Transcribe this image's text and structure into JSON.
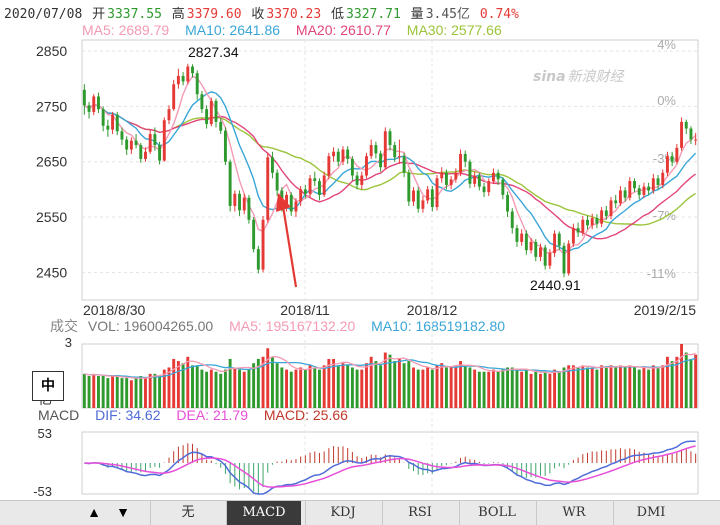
{
  "header": {
    "date": "2020/07/08",
    "open_label": "开",
    "open": "3337.55",
    "high_label": "高",
    "high": "3379.60",
    "close_label": "收",
    "close": "3370.23",
    "low_label": "低",
    "low": "3327.71",
    "vol_label": "量",
    "vol": "3.45亿",
    "change": "0.74%"
  },
  "ma_legend": {
    "ma5": "MA5: 2689.79",
    "ma10": "MA10: 2641.86",
    "ma20": "MA20: 2610.77",
    "ma30": "MA30: 2577.66"
  },
  "vol_legend": {
    "label": "成交",
    "vol": "VOL: 196004265.00",
    "ma5": "MA5: 195167132.20",
    "ma10": "MA10: 168519182.80"
  },
  "macd_legend": {
    "label": "MACD",
    "dif": "DIF: 34.62",
    "dea": "DEA: 21.79",
    "macd": "MACD: 25.66"
  },
  "brand": "新浪财经",
  "brand_prefix": "sina",
  "zh_button": "中",
  "tabs": [
    "无",
    "MACD",
    "KDJ",
    "RSI",
    "BOLL",
    "WR",
    "DMI"
  ],
  "active_tab": "MACD",
  "nav": {
    "up": "▲",
    "down": "▼"
  },
  "colors": {
    "up": "#e53935",
    "down": "#2e9a2e",
    "ma5": "#f39bb3",
    "ma10": "#3aa6d8",
    "ma20": "#e2467a",
    "ma30": "#9bc43a",
    "dif": "#4f6bd8",
    "dea": "#e84fd8",
    "annotation": "#e53935"
  },
  "chart_data": {
    "type": "candlestick",
    "price_axis": {
      "ticks": [
        2850,
        2750,
        2650,
        2550,
        2450
      ],
      "ylim": [
        2400,
        2870
      ]
    },
    "pct_axis": {
      "ticks": [
        "4%",
        "0%",
        "-3%",
        "-7%",
        "-11%"
      ]
    },
    "x_ticks": [
      "2018/8/30",
      "2018/11",
      "2018/12",
      "2019/2/15"
    ],
    "annotations": {
      "high": "2827.34",
      "low": "2440.91"
    },
    "volume_axis": {
      "top": "3",
      "unit": "亿"
    },
    "macd_axis": {
      "top": "53",
      "bottom": "-53"
    },
    "candles": [
      {
        "o": 2780,
        "c": 2752,
        "h": 2790,
        "l": 2735,
        "v": 1.6
      },
      {
        "o": 2752,
        "c": 2740,
        "h": 2758,
        "l": 2728,
        "v": 1.5
      },
      {
        "o": 2740,
        "c": 2768,
        "h": 2772,
        "l": 2734,
        "v": 1.6
      },
      {
        "o": 2768,
        "c": 2745,
        "h": 2775,
        "l": 2738,
        "v": 1.5
      },
      {
        "o": 2745,
        "c": 2715,
        "h": 2750,
        "l": 2705,
        "v": 1.5
      },
      {
        "o": 2715,
        "c": 2708,
        "h": 2726,
        "l": 2695,
        "v": 1.4
      },
      {
        "o": 2708,
        "c": 2735,
        "h": 2740,
        "l": 2700,
        "v": 1.5
      },
      {
        "o": 2735,
        "c": 2705,
        "h": 2740,
        "l": 2698,
        "v": 1.5
      },
      {
        "o": 2705,
        "c": 2690,
        "h": 2712,
        "l": 2680,
        "v": 1.4
      },
      {
        "o": 2690,
        "c": 2672,
        "h": 2696,
        "l": 2662,
        "v": 1.4
      },
      {
        "o": 2672,
        "c": 2688,
        "h": 2694,
        "l": 2664,
        "v": 1.3
      },
      {
        "o": 2688,
        "c": 2680,
        "h": 2700,
        "l": 2674,
        "v": 1.4
      },
      {
        "o": 2680,
        "c": 2655,
        "h": 2684,
        "l": 2648,
        "v": 1.5
      },
      {
        "o": 2655,
        "c": 2668,
        "h": 2676,
        "l": 2650,
        "v": 1.4
      },
      {
        "o": 2668,
        "c": 2700,
        "h": 2708,
        "l": 2664,
        "v": 1.6
      },
      {
        "o": 2700,
        "c": 2680,
        "h": 2712,
        "l": 2670,
        "v": 1.6
      },
      {
        "o": 2680,
        "c": 2652,
        "h": 2686,
        "l": 2645,
        "v": 1.5
      },
      {
        "o": 2652,
        "c": 2725,
        "h": 2730,
        "l": 2650,
        "v": 1.8
      },
      {
        "o": 2725,
        "c": 2745,
        "h": 2752,
        "l": 2718,
        "v": 1.9
      },
      {
        "o": 2745,
        "c": 2790,
        "h": 2798,
        "l": 2742,
        "v": 2.3
      },
      {
        "o": 2790,
        "c": 2805,
        "h": 2818,
        "l": 2782,
        "v": 2.2
      },
      {
        "o": 2805,
        "c": 2795,
        "h": 2812,
        "l": 2788,
        "v": 2.1
      },
      {
        "o": 2795,
        "c": 2822,
        "h": 2827,
        "l": 2790,
        "v": 2.4
      },
      {
        "o": 2822,
        "c": 2810,
        "h": 2826,
        "l": 2802,
        "v": 2.0
      },
      {
        "o": 2810,
        "c": 2772,
        "h": 2815,
        "l": 2762,
        "v": 2.0
      },
      {
        "o": 2772,
        "c": 2745,
        "h": 2778,
        "l": 2738,
        "v": 1.8
      },
      {
        "o": 2745,
        "c": 2718,
        "h": 2752,
        "l": 2710,
        "v": 1.7
      },
      {
        "o": 2718,
        "c": 2760,
        "h": 2766,
        "l": 2714,
        "v": 1.8
      },
      {
        "o": 2760,
        "c": 2722,
        "h": 2764,
        "l": 2712,
        "v": 1.7
      },
      {
        "o": 2722,
        "c": 2706,
        "h": 2730,
        "l": 2700,
        "v": 1.6
      },
      {
        "o": 2706,
        "c": 2650,
        "h": 2712,
        "l": 2644,
        "v": 1.8
      },
      {
        "o": 2650,
        "c": 2570,
        "h": 2654,
        "l": 2560,
        "v": 2.3
      },
      {
        "o": 2570,
        "c": 2592,
        "h": 2598,
        "l": 2560,
        "v": 1.9
      },
      {
        "o": 2592,
        "c": 2562,
        "h": 2598,
        "l": 2552,
        "v": 1.8
      },
      {
        "o": 2562,
        "c": 2585,
        "h": 2592,
        "l": 2555,
        "v": 1.7
      },
      {
        "o": 2585,
        "c": 2545,
        "h": 2590,
        "l": 2538,
        "v": 1.8
      },
      {
        "o": 2545,
        "c": 2492,
        "h": 2550,
        "l": 2486,
        "v": 2.1
      },
      {
        "o": 2492,
        "c": 2455,
        "h": 2498,
        "l": 2448,
        "v": 2.3
      },
      {
        "o": 2455,
        "c": 2545,
        "h": 2552,
        "l": 2450,
        "v": 2.4
      },
      {
        "o": 2545,
        "c": 2658,
        "h": 2666,
        "l": 2540,
        "v": 2.8
      },
      {
        "o": 2658,
        "c": 2630,
        "h": 2668,
        "l": 2620,
        "v": 2.4
      },
      {
        "o": 2630,
        "c": 2598,
        "h": 2636,
        "l": 2588,
        "v": 2.1
      },
      {
        "o": 2598,
        "c": 2568,
        "h": 2604,
        "l": 2560,
        "v": 1.9
      },
      {
        "o": 2568,
        "c": 2590,
        "h": 2596,
        "l": 2560,
        "v": 1.8
      },
      {
        "o": 2590,
        "c": 2560,
        "h": 2595,
        "l": 2552,
        "v": 1.7
      },
      {
        "o": 2560,
        "c": 2578,
        "h": 2584,
        "l": 2550,
        "v": 1.8
      },
      {
        "o": 2578,
        "c": 2600,
        "h": 2606,
        "l": 2570,
        "v": 1.9
      },
      {
        "o": 2600,
        "c": 2592,
        "h": 2608,
        "l": 2584,
        "v": 1.8
      },
      {
        "o": 2592,
        "c": 2620,
        "h": 2626,
        "l": 2586,
        "v": 2.0
      },
      {
        "o": 2620,
        "c": 2615,
        "h": 2632,
        "l": 2606,
        "v": 1.9
      },
      {
        "o": 2615,
        "c": 2590,
        "h": 2620,
        "l": 2580,
        "v": 1.8
      },
      {
        "o": 2590,
        "c": 2625,
        "h": 2632,
        "l": 2586,
        "v": 2.0
      },
      {
        "o": 2625,
        "c": 2660,
        "h": 2666,
        "l": 2618,
        "v": 2.3
      },
      {
        "o": 2660,
        "c": 2668,
        "h": 2676,
        "l": 2650,
        "v": 2.3
      },
      {
        "o": 2668,
        "c": 2650,
        "h": 2674,
        "l": 2642,
        "v": 2.0
      },
      {
        "o": 2650,
        "c": 2672,
        "h": 2678,
        "l": 2644,
        "v": 2.1
      },
      {
        "o": 2672,
        "c": 2655,
        "h": 2678,
        "l": 2646,
        "v": 2.0
      },
      {
        "o": 2655,
        "c": 2625,
        "h": 2660,
        "l": 2616,
        "v": 1.9
      },
      {
        "o": 2625,
        "c": 2608,
        "h": 2632,
        "l": 2600,
        "v": 1.8
      },
      {
        "o": 2608,
        "c": 2625,
        "h": 2632,
        "l": 2600,
        "v": 1.8
      },
      {
        "o": 2625,
        "c": 2660,
        "h": 2666,
        "l": 2620,
        "v": 2.1
      },
      {
        "o": 2660,
        "c": 2680,
        "h": 2690,
        "l": 2655,
        "v": 2.4
      },
      {
        "o": 2680,
        "c": 2665,
        "h": 2686,
        "l": 2656,
        "v": 2.2
      },
      {
        "o": 2665,
        "c": 2640,
        "h": 2670,
        "l": 2632,
        "v": 2.0
      },
      {
        "o": 2640,
        "c": 2705,
        "h": 2712,
        "l": 2636,
        "v": 2.6
      },
      {
        "o": 2705,
        "c": 2680,
        "h": 2710,
        "l": 2670,
        "v": 2.5
      },
      {
        "o": 2680,
        "c": 2658,
        "h": 2686,
        "l": 2650,
        "v": 2.2
      },
      {
        "o": 2658,
        "c": 2660,
        "h": 2690,
        "l": 2646,
        "v": 2.3
      },
      {
        "o": 2660,
        "c": 2630,
        "h": 2666,
        "l": 2622,
        "v": 2.1
      },
      {
        "o": 2630,
        "c": 2578,
        "h": 2636,
        "l": 2570,
        "v": 2.2
      },
      {
        "o": 2578,
        "c": 2598,
        "h": 2604,
        "l": 2570,
        "v": 1.9
      },
      {
        "o": 2598,
        "c": 2565,
        "h": 2604,
        "l": 2558,
        "v": 1.8
      },
      {
        "o": 2565,
        "c": 2580,
        "h": 2588,
        "l": 2558,
        "v": 1.8
      },
      {
        "o": 2580,
        "c": 2600,
        "h": 2606,
        "l": 2574,
        "v": 1.9
      },
      {
        "o": 2600,
        "c": 2568,
        "h": 2606,
        "l": 2560,
        "v": 1.8
      },
      {
        "o": 2568,
        "c": 2620,
        "h": 2626,
        "l": 2562,
        "v": 2.0
      },
      {
        "o": 2620,
        "c": 2630,
        "h": 2640,
        "l": 2612,
        "v": 2.1
      },
      {
        "o": 2630,
        "c": 2608,
        "h": 2636,
        "l": 2600,
        "v": 1.9
      },
      {
        "o": 2608,
        "c": 2618,
        "h": 2624,
        "l": 2600,
        "v": 1.9
      },
      {
        "o": 2618,
        "c": 2630,
        "h": 2638,
        "l": 2612,
        "v": 2.0
      },
      {
        "o": 2630,
        "c": 2664,
        "h": 2672,
        "l": 2624,
        "v": 2.2
      },
      {
        "o": 2664,
        "c": 2650,
        "h": 2670,
        "l": 2640,
        "v": 2.0
      },
      {
        "o": 2650,
        "c": 2610,
        "h": 2654,
        "l": 2602,
        "v": 1.9
      },
      {
        "o": 2610,
        "c": 2625,
        "h": 2632,
        "l": 2604,
        "v": 1.8
      },
      {
        "o": 2625,
        "c": 2605,
        "h": 2630,
        "l": 2598,
        "v": 1.7
      },
      {
        "o": 2605,
        "c": 2595,
        "h": 2612,
        "l": 2586,
        "v": 1.7
      },
      {
        "o": 2595,
        "c": 2615,
        "h": 2620,
        "l": 2588,
        "v": 1.7
      },
      {
        "o": 2615,
        "c": 2630,
        "h": 2638,
        "l": 2610,
        "v": 1.8
      },
      {
        "o": 2630,
        "c": 2618,
        "h": 2636,
        "l": 2608,
        "v": 1.7
      },
      {
        "o": 2618,
        "c": 2590,
        "h": 2622,
        "l": 2582,
        "v": 1.8
      },
      {
        "o": 2590,
        "c": 2560,
        "h": 2596,
        "l": 2550,
        "v": 1.9
      },
      {
        "o": 2560,
        "c": 2530,
        "h": 2566,
        "l": 2520,
        "v": 1.9
      },
      {
        "o": 2530,
        "c": 2505,
        "h": 2536,
        "l": 2496,
        "v": 1.8
      },
      {
        "o": 2505,
        "c": 2520,
        "h": 2528,
        "l": 2498,
        "v": 1.7
      },
      {
        "o": 2520,
        "c": 2490,
        "h": 2526,
        "l": 2482,
        "v": 1.8
      },
      {
        "o": 2490,
        "c": 2505,
        "h": 2512,
        "l": 2484,
        "v": 1.6
      },
      {
        "o": 2505,
        "c": 2478,
        "h": 2510,
        "l": 2470,
        "v": 1.7
      },
      {
        "o": 2478,
        "c": 2495,
        "h": 2502,
        "l": 2470,
        "v": 1.6
      },
      {
        "o": 2495,
        "c": 2462,
        "h": 2500,
        "l": 2455,
        "v": 1.7
      },
      {
        "o": 2462,
        "c": 2485,
        "h": 2492,
        "l": 2456,
        "v": 1.6
      },
      {
        "o": 2485,
        "c": 2520,
        "h": 2526,
        "l": 2478,
        "v": 1.8
      },
      {
        "o": 2520,
        "c": 2498,
        "h": 2524,
        "l": 2490,
        "v": 1.7
      },
      {
        "o": 2498,
        "c": 2448,
        "h": 2504,
        "l": 2441,
        "v": 1.9
      },
      {
        "o": 2448,
        "c": 2502,
        "h": 2508,
        "l": 2444,
        "v": 2.0
      },
      {
        "o": 2502,
        "c": 2530,
        "h": 2538,
        "l": 2496,
        "v": 2.0
      },
      {
        "o": 2530,
        "c": 2522,
        "h": 2540,
        "l": 2514,
        "v": 1.9
      },
      {
        "o": 2522,
        "c": 2545,
        "h": 2552,
        "l": 2516,
        "v": 2.0
      },
      {
        "o": 2545,
        "c": 2535,
        "h": 2552,
        "l": 2528,
        "v": 1.9
      },
      {
        "o": 2535,
        "c": 2548,
        "h": 2556,
        "l": 2528,
        "v": 1.9
      },
      {
        "o": 2548,
        "c": 2538,
        "h": 2555,
        "l": 2530,
        "v": 1.8
      },
      {
        "o": 2538,
        "c": 2562,
        "h": 2568,
        "l": 2532,
        "v": 2.0
      },
      {
        "o": 2562,
        "c": 2552,
        "h": 2570,
        "l": 2545,
        "v": 1.9
      },
      {
        "o": 2552,
        "c": 2580,
        "h": 2586,
        "l": 2546,
        "v": 2.0
      },
      {
        "o": 2580,
        "c": 2575,
        "h": 2590,
        "l": 2566,
        "v": 1.9
      },
      {
        "o": 2575,
        "c": 2598,
        "h": 2606,
        "l": 2570,
        "v": 2.0
      },
      {
        "o": 2598,
        "c": 2585,
        "h": 2604,
        "l": 2578,
        "v": 1.9
      },
      {
        "o": 2585,
        "c": 2615,
        "h": 2622,
        "l": 2580,
        "v": 2.0
      },
      {
        "o": 2615,
        "c": 2602,
        "h": 2620,
        "l": 2595,
        "v": 1.9
      },
      {
        "o": 2602,
        "c": 2590,
        "h": 2608,
        "l": 2582,
        "v": 1.8
      },
      {
        "o": 2590,
        "c": 2605,
        "h": 2612,
        "l": 2584,
        "v": 1.9
      },
      {
        "o": 2605,
        "c": 2598,
        "h": 2612,
        "l": 2590,
        "v": 1.8
      },
      {
        "o": 2598,
        "c": 2620,
        "h": 2628,
        "l": 2592,
        "v": 2.0
      },
      {
        "o": 2620,
        "c": 2608,
        "h": 2626,
        "l": 2600,
        "v": 1.9
      },
      {
        "o": 2608,
        "c": 2630,
        "h": 2636,
        "l": 2602,
        "v": 2.0
      },
      {
        "o": 2630,
        "c": 2660,
        "h": 2668,
        "l": 2624,
        "v": 2.4
      },
      {
        "o": 2660,
        "c": 2650,
        "h": 2668,
        "l": 2642,
        "v": 2.2
      },
      {
        "o": 2650,
        "c": 2675,
        "h": 2682,
        "l": 2646,
        "v": 2.4
      },
      {
        "o": 2675,
        "c": 2722,
        "h": 2730,
        "l": 2670,
        "v": 3.0
      },
      {
        "o": 2722,
        "c": 2710,
        "h": 2726,
        "l": 2700,
        "v": 2.6
      },
      {
        "o": 2710,
        "c": 2690,
        "h": 2714,
        "l": 2682,
        "v": 2.3
      },
      {
        "o": 2690,
        "c": 2690,
        "h": 2702,
        "l": 2680,
        "v": 2.5
      }
    ]
  }
}
